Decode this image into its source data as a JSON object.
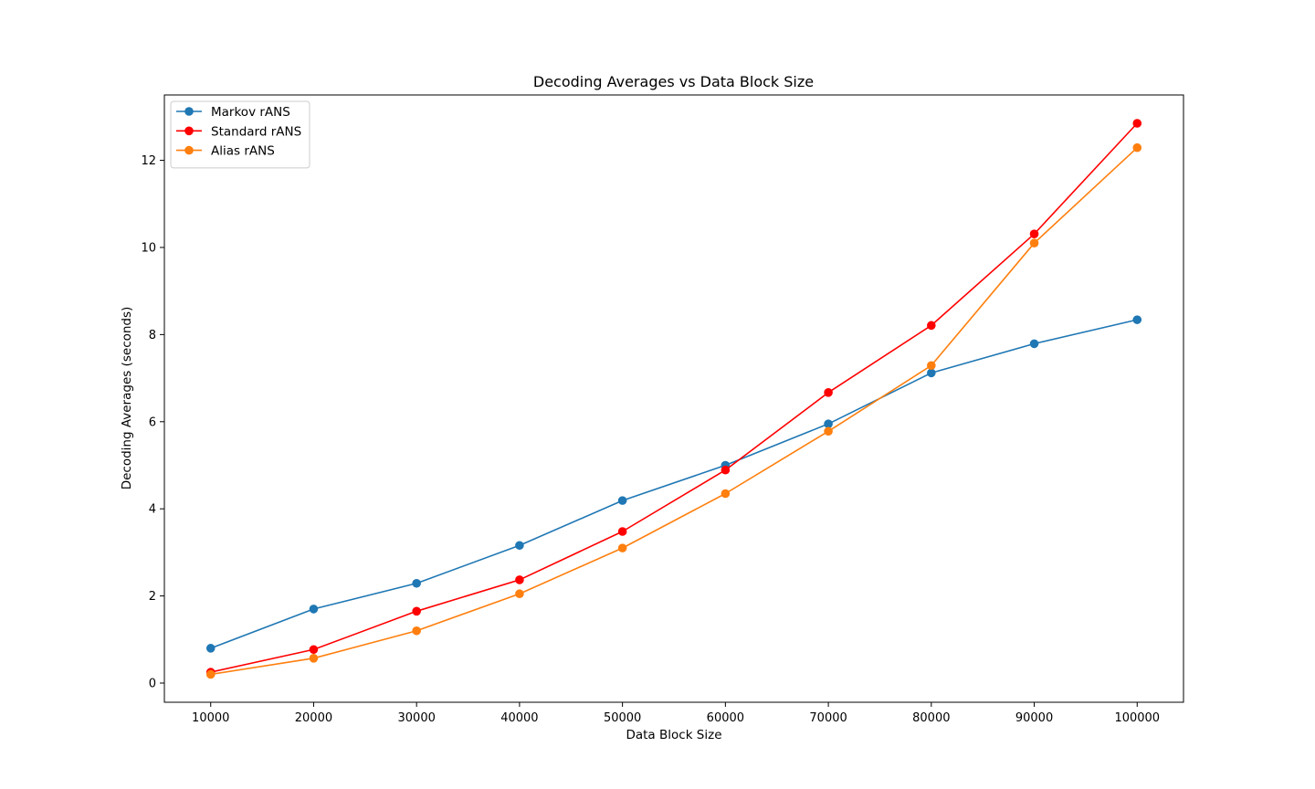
{
  "chart_data": {
    "type": "line",
    "title": "Decoding Averages vs Data Block Size",
    "xlabel": "Data Block Size",
    "ylabel": "Decoding Averages (seconds)",
    "x": [
      10000,
      20000,
      30000,
      40000,
      50000,
      60000,
      70000,
      80000,
      90000,
      100000
    ],
    "xticks": [
      "10000",
      "20000",
      "30000",
      "40000",
      "50000",
      "60000",
      "70000",
      "80000",
      "90000",
      "100000"
    ],
    "yticks": [
      "0",
      "2",
      "4",
      "6",
      "8",
      "10",
      "12"
    ],
    "xlim": [
      5500,
      104500
    ],
    "ylim": [
      -0.44,
      13.5
    ],
    "grid": false,
    "legend_position": "top-left",
    "series": [
      {
        "name": "Markov rANS",
        "color": "#1f77b4",
        "values": [
          0.8,
          1.7,
          2.29,
          3.16,
          4.19,
          5.0,
          5.95,
          7.12,
          7.79,
          8.34
        ]
      },
      {
        "name": "Standard rANS",
        "color": "#ff0000",
        "values": [
          0.25,
          0.77,
          1.65,
          2.37,
          3.48,
          4.89,
          6.67,
          8.21,
          10.31,
          12.85
        ]
      },
      {
        "name": "Alias rANS",
        "color": "#ff7f0e",
        "values": [
          0.2,
          0.57,
          1.2,
          2.05,
          3.1,
          4.35,
          5.78,
          7.29,
          10.1,
          12.29
        ]
      }
    ]
  }
}
